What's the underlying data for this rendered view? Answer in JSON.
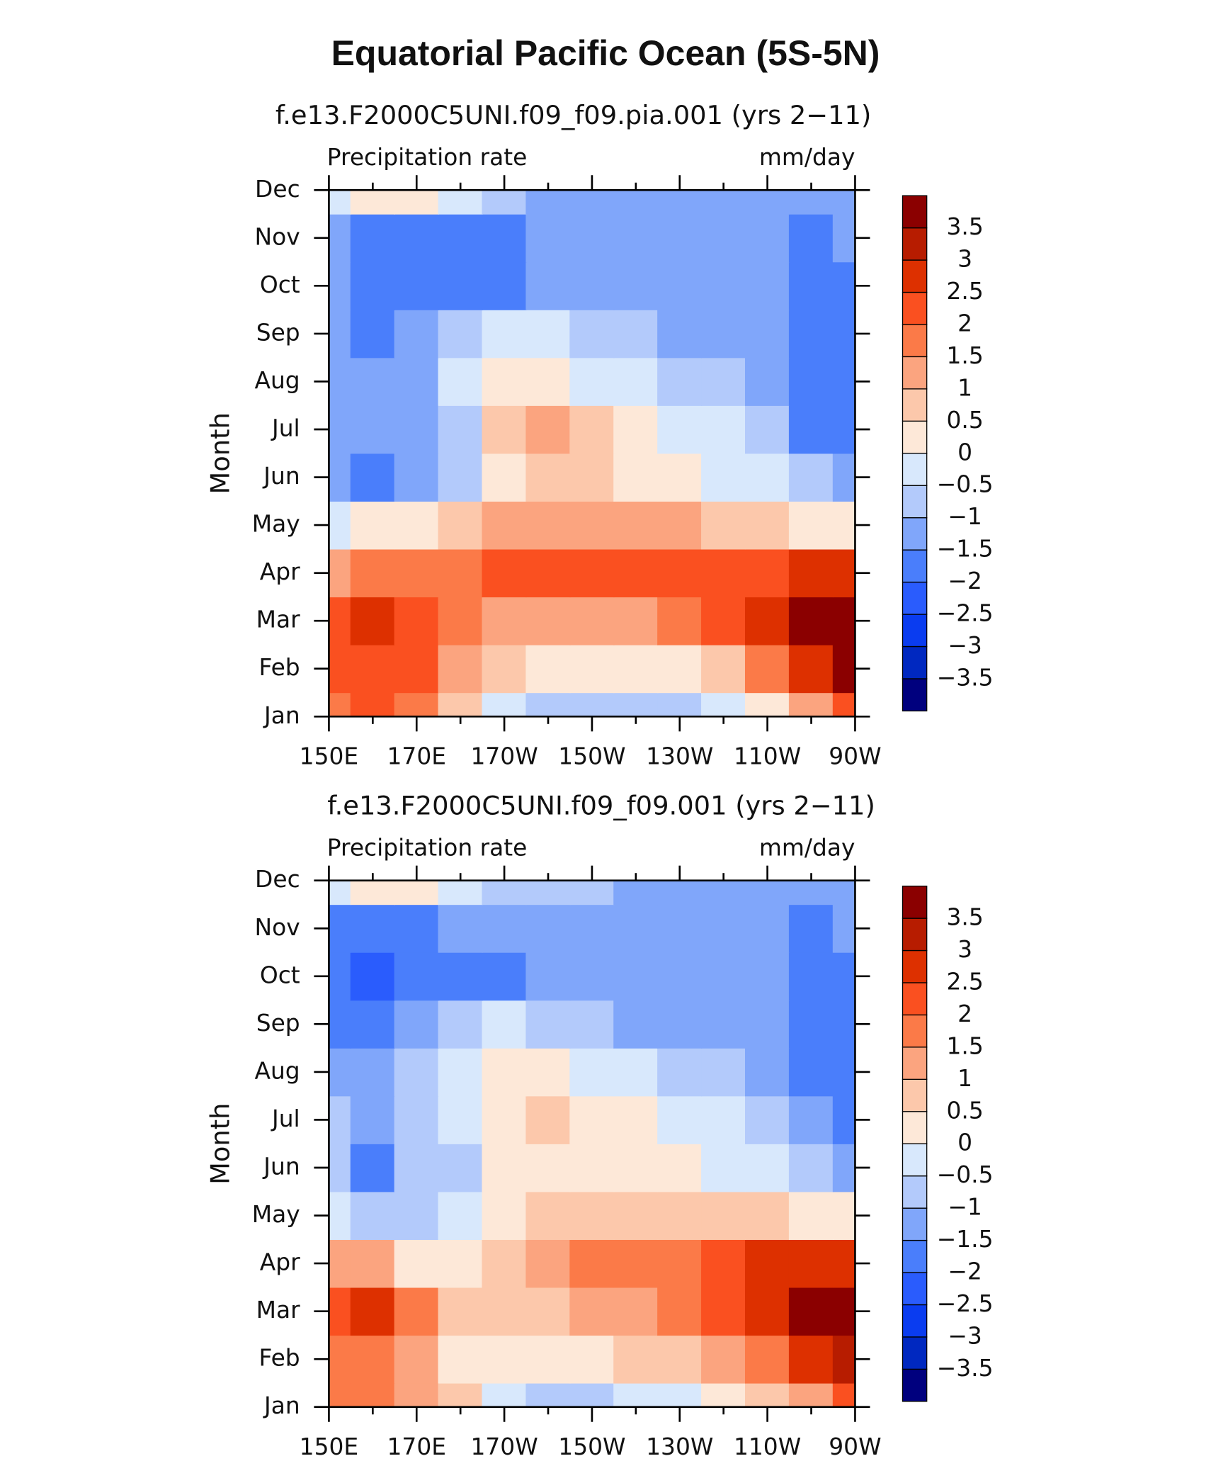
{
  "title": "Equatorial Pacific Ocean (5S-5N)",
  "chart_data": [
    {
      "type": "contour",
      "title": "f.e13.F2000C5UNI.f09_f09.pia.001 (yrs 2−11)",
      "left_label": "Precipitation rate",
      "right_label": "mm/day",
      "ylabel": "Month",
      "x": [
        150,
        160,
        170,
        180,
        190,
        200,
        210,
        220,
        230,
        240,
        250,
        260,
        270
      ],
      "xlim": [
        150,
        270
      ],
      "xticks": [
        {
          "value": 150,
          "label": "150E"
        },
        {
          "value": 170,
          "label": "170E"
        },
        {
          "value": 190,
          "label": "170W"
        },
        {
          "value": 210,
          "label": "150W"
        },
        {
          "value": 230,
          "label": "130W"
        },
        {
          "value": 250,
          "label": "110W"
        },
        {
          "value": 270,
          "label": "90W"
        }
      ],
      "xminor": [
        160,
        180,
        200,
        220,
        240,
        260
      ],
      "y": [
        "Jan",
        "Feb",
        "Mar",
        "Apr",
        "May",
        "Jun",
        "Jul",
        "Aug",
        "Sep",
        "Oct",
        "Nov",
        "Dec"
      ],
      "z": [
        [
          2,
          2.5,
          2,
          1,
          0,
          -0.5,
          -0.5,
          -0.5,
          -0.5,
          0,
          0.5,
          1.5,
          2.5
        ],
        [
          2.5,
          2.5,
          2.2,
          1.3,
          0.7,
          0.3,
          0.3,
          0.3,
          0.5,
          1,
          1.8,
          3,
          4
        ],
        [
          2.5,
          3,
          2.2,
          1.8,
          1.5,
          1.5,
          1.5,
          1.5,
          1.8,
          2.5,
          3,
          4,
          4
        ],
        [
          1.5,
          2,
          2,
          2,
          2.2,
          2.2,
          2.3,
          2.3,
          2.3,
          2.3,
          2.5,
          3,
          3
        ],
        [
          0,
          0.5,
          0.5,
          1,
          1.2,
          1.5,
          1.5,
          1.5,
          1.2,
          1,
          0.8,
          0.5,
          0.5
        ],
        [
          -1.2,
          -1.5,
          -1.2,
          -0.5,
          0.5,
          0.8,
          0.8,
          0.5,
          0.2,
          0,
          -0.3,
          -0.5,
          -1
        ],
        [
          -1,
          -1.2,
          -1,
          -0.5,
          0.8,
          1.2,
          0.6,
          0.2,
          0,
          -0.3,
          -0.8,
          -1.5,
          -1.5
        ],
        [
          -1,
          -1,
          -1,
          -0.2,
          0.5,
          0.3,
          0,
          -0.3,
          -0.5,
          -0.6,
          -1,
          -1.5,
          -1.5
        ],
        [
          -1,
          -1.5,
          -1,
          -0.5,
          0,
          -0.3,
          -0.5,
          -0.8,
          -1,
          -1,
          -1.2,
          -1.5,
          -1.5
        ],
        [
          -1,
          -1.5,
          -1.5,
          -1.5,
          -1.5,
          -1,
          -1,
          -1,
          -1,
          -1,
          -1.2,
          -1.5,
          -1.5
        ],
        [
          -1,
          -1.5,
          -1.5,
          -1.5,
          -1.5,
          -1.2,
          -1,
          -1,
          -1,
          -1,
          -1.2,
          -1.5,
          -1.2
        ],
        [
          0,
          0.5,
          0.5,
          0,
          -0.5,
          -1,
          -1,
          -1,
          -1,
          -1,
          -1,
          -1.2,
          -1
        ]
      ],
      "levels": [
        {
          "value": -3.5,
          "label": "−3.5"
        },
        {
          "value": -3,
          "label": "−3"
        },
        {
          "value": -2.5,
          "label": "−2.5"
        },
        {
          "value": -2,
          "label": "−2"
        },
        {
          "value": -1.5,
          "label": "−1.5"
        },
        {
          "value": -1,
          "label": "−1"
        },
        {
          "value": -0.5,
          "label": "−0.5"
        },
        0,
        0.5,
        1,
        1.5,
        2,
        2.5,
        3,
        3.5
      ],
      "colors": [
        "#00007e",
        "#0028c0",
        "#0a3cf0",
        "#2a5cfd",
        "#4a7efb",
        "#80a6fa",
        "#b3cafb",
        "#d8e8fc",
        "#fde8d8",
        "#fcc8ab",
        "#fba47f",
        "#fb7a48",
        "#fa5020",
        "#dd3000",
        "#b71c00",
        "#8b0000"
      ]
    },
    {
      "type": "contour",
      "title": "f.e13.F2000C5UNI.f09_f09.001 (yrs 2−11)",
      "left_label": "Precipitation rate",
      "right_label": "mm/day",
      "ylabel": "Month",
      "x": [
        150,
        160,
        170,
        180,
        190,
        200,
        210,
        220,
        230,
        240,
        250,
        260,
        270
      ],
      "xlim": [
        150,
        270
      ],
      "xticks": [
        {
          "value": 150,
          "label": "150E"
        },
        {
          "value": 170,
          "label": "170E"
        },
        {
          "value": 190,
          "label": "170W"
        },
        {
          "value": 210,
          "label": "150W"
        },
        {
          "value": 230,
          "label": "130W"
        },
        {
          "value": 250,
          "label": "110W"
        },
        {
          "value": 270,
          "label": "90W"
        }
      ],
      "xminor": [
        160,
        180,
        200,
        220,
        240,
        260
      ],
      "y": [
        "Jan",
        "Feb",
        "Mar",
        "Apr",
        "May",
        "Jun",
        "Jul",
        "Aug",
        "Sep",
        "Oct",
        "Nov",
        "Dec"
      ],
      "z": [
        [
          2,
          2,
          1.5,
          0.8,
          0,
          -0.5,
          -0.5,
          -0.3,
          0,
          0.5,
          1,
          1.5,
          2.5
        ],
        [
          2,
          2,
          1.5,
          0.5,
          0.3,
          0.5,
          0.5,
          0.7,
          1,
          1.5,
          2,
          3,
          3.5
        ],
        [
          2.5,
          3,
          2,
          0.8,
          0.8,
          1,
          1.2,
          1.5,
          2,
          2.5,
          3,
          4,
          4
        ],
        [
          1.5,
          1.5,
          0.5,
          0.5,
          0.8,
          1.5,
          2,
          2,
          2,
          2.5,
          3,
          3,
          3
        ],
        [
          0,
          -0.5,
          -0.5,
          0,
          0.5,
          1,
          1,
          1,
          1,
          0.8,
          0.8,
          0.5,
          0.5
        ],
        [
          -0.5,
          -1.5,
          -0.8,
          -0.8,
          0.3,
          0.5,
          0.5,
          0.5,
          0.3,
          0,
          -0.3,
          -0.5,
          -1
        ],
        [
          -0.5,
          -1,
          -0.5,
          -0.3,
          0.5,
          1,
          0.5,
          0.2,
          0,
          -0.3,
          -0.5,
          -1,
          -1.5
        ],
        [
          -1,
          -1.2,
          -0.5,
          0,
          0.5,
          0.3,
          0,
          -0.3,
          -0.5,
          -0.8,
          -1,
          -1.5,
          -1.5
        ],
        [
          -1.5,
          -1.5,
          -1,
          -0.5,
          0,
          -0.5,
          -0.8,
          -1,
          -1,
          -1,
          -1.2,
          -1.5,
          -1.5
        ],
        [
          -1.5,
          -2,
          -1.5,
          -1.5,
          -1.5,
          -1,
          -1,
          -1,
          -1,
          -1,
          -1,
          -1.5,
          -1.5
        ],
        [
          -1.5,
          -1.5,
          -1.5,
          -1.2,
          -1.2,
          -1,
          -1,
          -1,
          -1,
          -1,
          -1,
          -1.5,
          -1.2
        ],
        [
          0,
          0.5,
          0.5,
          0,
          -0.5,
          -0.5,
          -0.8,
          -1,
          -1,
          -1,
          -1,
          -1.2,
          -1
        ]
      ],
      "levels": [
        {
          "value": -3.5,
          "label": "−3.5"
        },
        {
          "value": -3,
          "label": "−3"
        },
        {
          "value": -2.5,
          "label": "−2.5"
        },
        {
          "value": -2,
          "label": "−2"
        },
        {
          "value": -1.5,
          "label": "−1.5"
        },
        {
          "value": -1,
          "label": "−1"
        },
        {
          "value": -0.5,
          "label": "−0.5"
        },
        0,
        0.5,
        1,
        1.5,
        2,
        2.5,
        3,
        3.5
      ],
      "colors": [
        "#00007e",
        "#0028c0",
        "#0a3cf0",
        "#2a5cfd",
        "#4a7efb",
        "#80a6fa",
        "#b3cafb",
        "#d8e8fc",
        "#fde8d8",
        "#fcc8ab",
        "#fba47f",
        "#fb7a48",
        "#fa5020",
        "#dd3000",
        "#b71c00",
        "#8b0000"
      ]
    }
  ]
}
